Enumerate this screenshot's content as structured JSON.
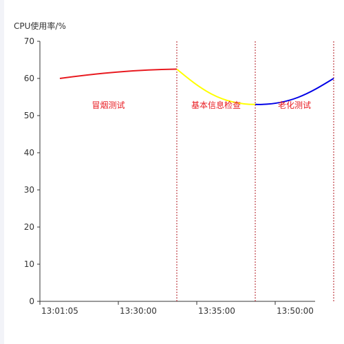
{
  "chart_data": {
    "type": "line",
    "ylabel": "CPU使用率/%",
    "xlabel": "",
    "title": "",
    "ylim": [
      0,
      70
    ],
    "yticks": [
      "0",
      "10",
      "20",
      "30",
      "40",
      "50",
      "60",
      "70"
    ],
    "categories": [
      "13:01:05",
      "13:30:00",
      "13:35:00",
      "13:50:00"
    ],
    "grid": false,
    "series": [
      {
        "color": "#e8191f",
        "x": [
          "13:01:05",
          "13:30:00"
        ],
        "values": [
          60,
          62.5
        ]
      },
      {
        "color": "#ffff00",
        "x": [
          "13:30:00",
          "13:35:00"
        ],
        "values": [
          62.5,
          53
        ]
      },
      {
        "color": "#0000e6",
        "x": [
          "13:35:00",
          "13:50:00"
        ],
        "values": [
          53,
          60
        ]
      }
    ],
    "phases": [
      {
        "label": "冒烟测试",
        "start": "13:01:05",
        "end": "13:30:00"
      },
      {
        "label": "基本信息检查",
        "start": "13:30:00",
        "end": "13:35:00"
      },
      {
        "label": "老化测试",
        "start": "13:35:00",
        "end": "13:50:00"
      }
    ],
    "markers": [
      "13:30:00",
      "13:35:00",
      "13:50:00"
    ],
    "colors": {
      "axis": "#333333",
      "marker": "#b0171f",
      "phase_label": "#e8191f"
    }
  }
}
